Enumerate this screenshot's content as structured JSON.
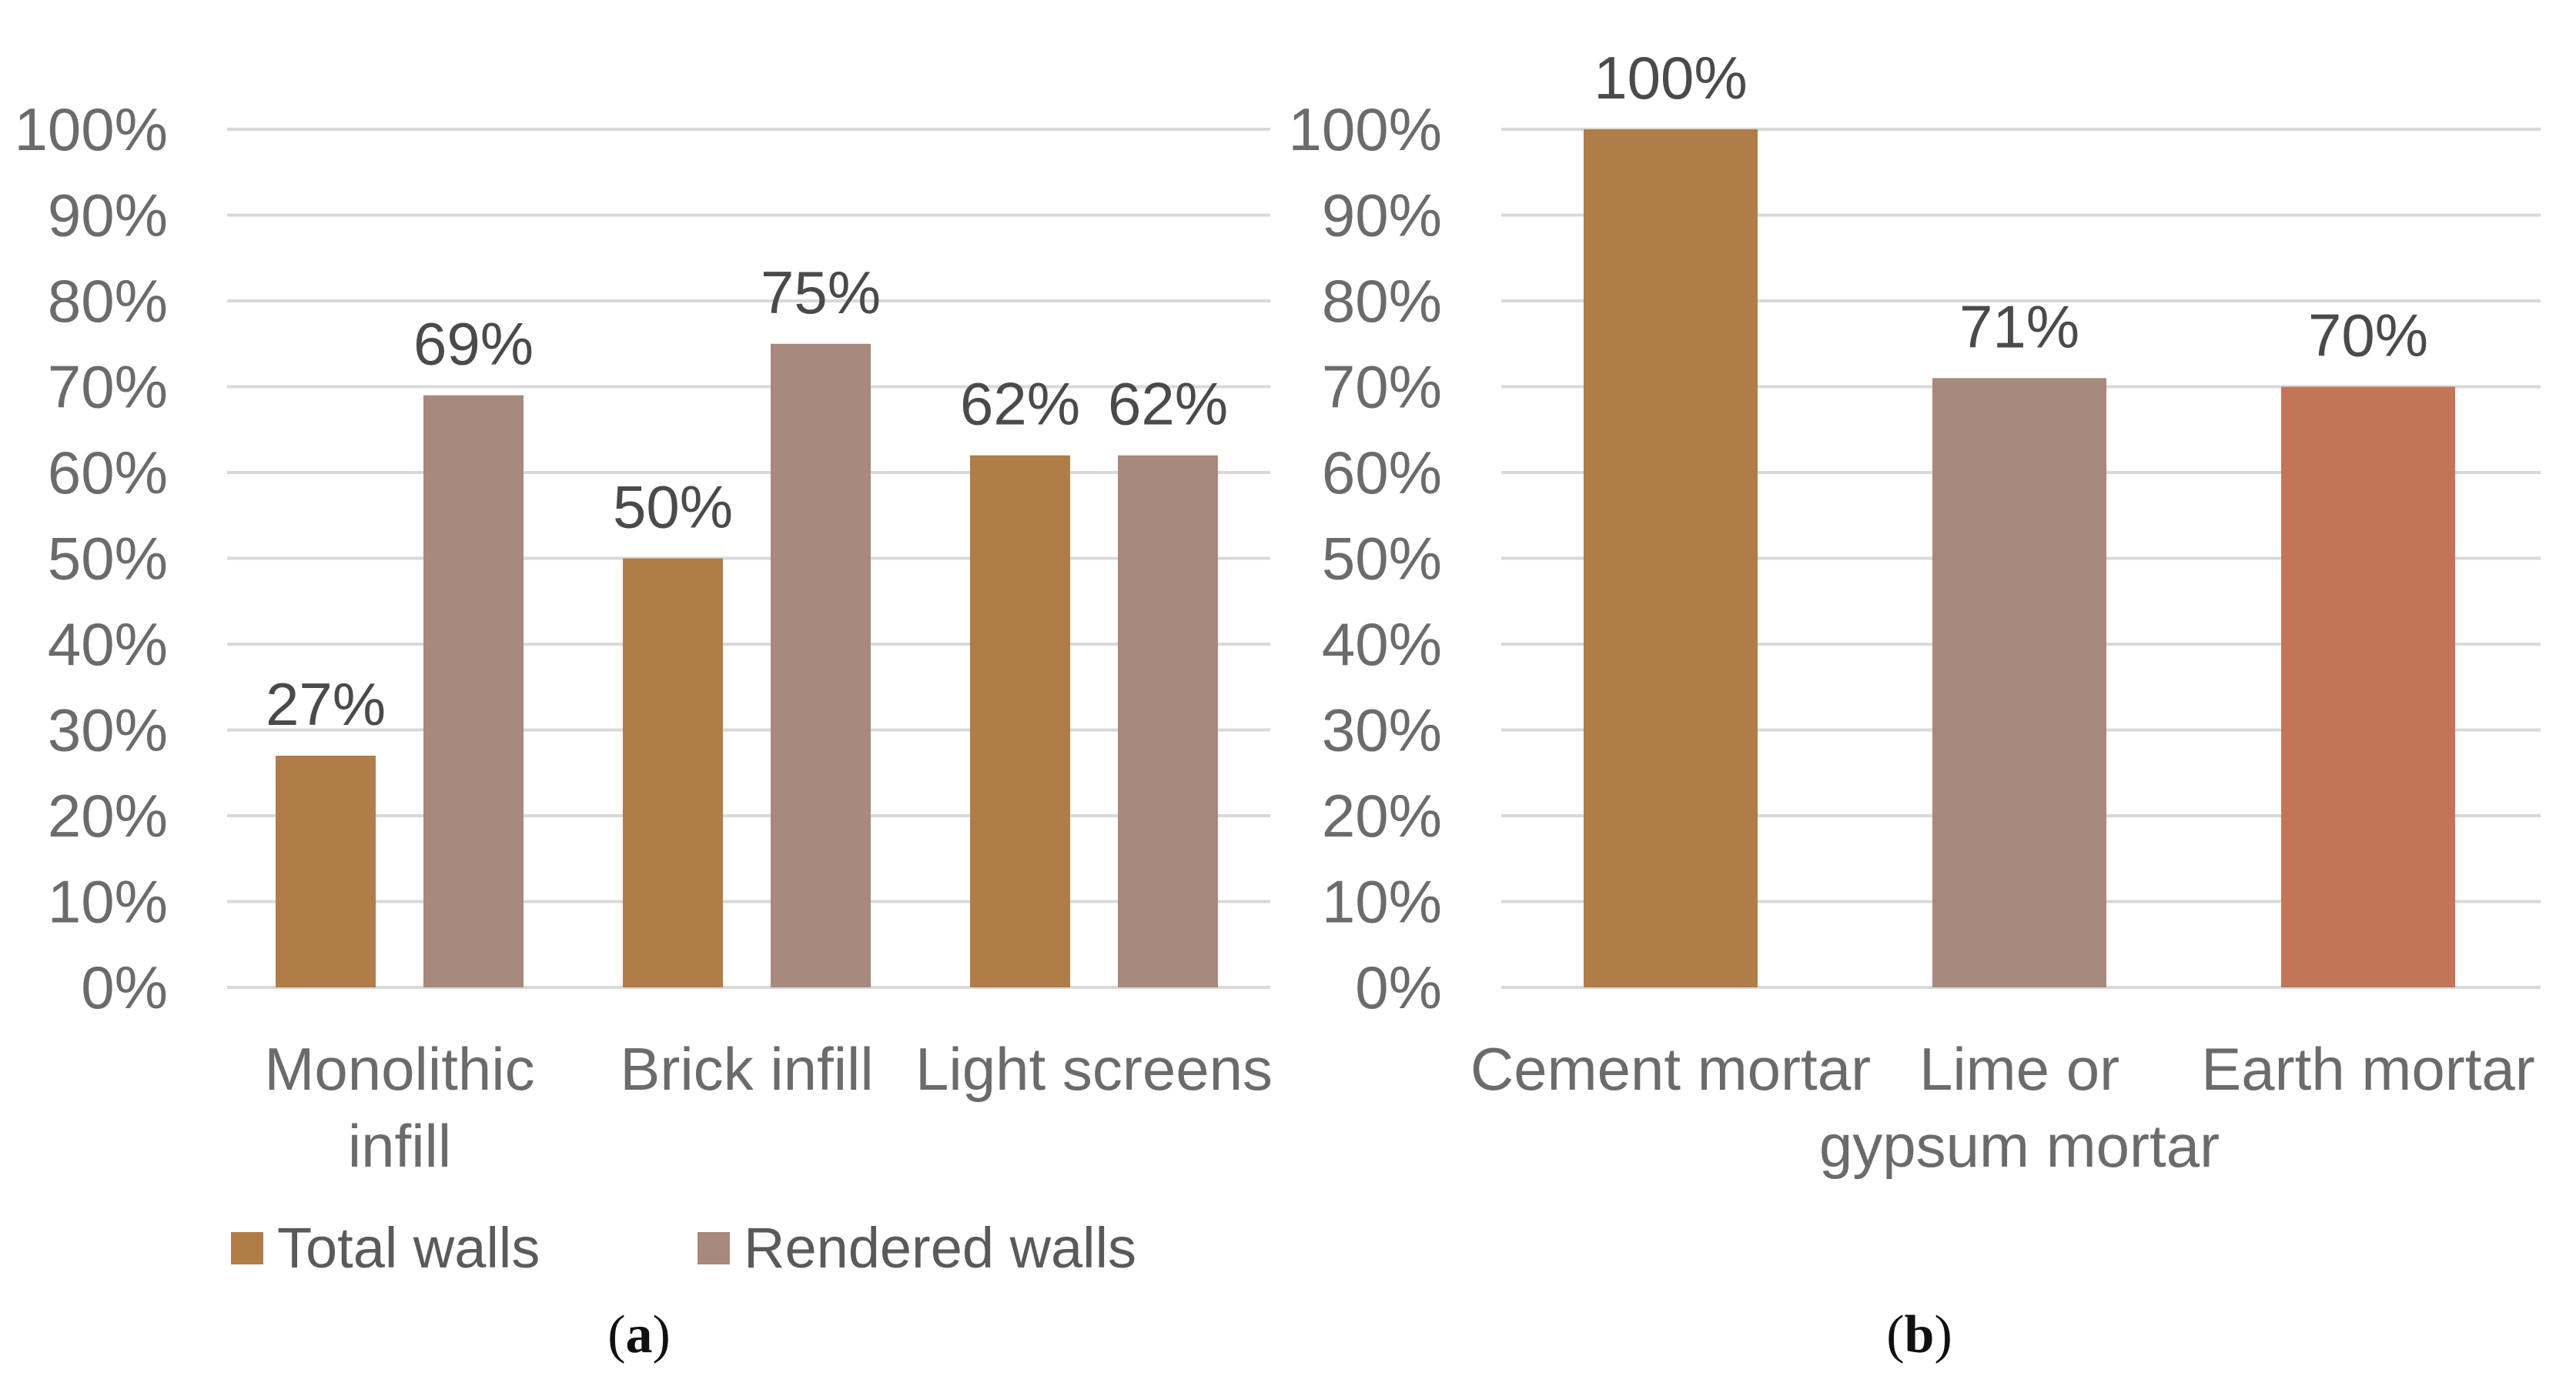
{
  "chart_data": [
    {
      "type": "bar",
      "panel": "a",
      "panel_letter": "a",
      "categories": [
        [
          "Monolithic",
          "infill"
        ],
        [
          "Brick infill"
        ],
        [
          "Light screens"
        ]
      ],
      "series": [
        {
          "name": "Total walls",
          "color": "#b07d48",
          "values": [
            27,
            50,
            62
          ]
        },
        {
          "name": "Rendered walls",
          "color": "#a8897d",
          "values": [
            69,
            75,
            62
          ]
        }
      ],
      "data_labels": [
        [
          "27%",
          "69%"
        ],
        [
          "50%",
          "75%"
        ],
        [
          "62%",
          "62%"
        ]
      ],
      "ylim": [
        0,
        100
      ],
      "yticks": [
        "0%",
        "10%",
        "20%",
        "30%",
        "40%",
        "50%",
        "60%",
        "70%",
        "80%",
        "90%",
        "100%"
      ],
      "grid": true,
      "legend": "bottom"
    },
    {
      "type": "bar",
      "panel": "b",
      "panel_letter": "b",
      "categories": [
        [
          "Cement mortar"
        ],
        [
          "Lime or",
          "gypsum mortar"
        ],
        [
          "Earth mortar"
        ]
      ],
      "values": [
        100,
        71,
        70
      ],
      "colors": [
        "#b07d48",
        "#a8897d",
        "#c27657"
      ],
      "data_labels": [
        "100%",
        "71%",
        "70%"
      ],
      "ylim": [
        0,
        100
      ],
      "yticks": [
        "0%",
        "10%",
        "20%",
        "30%",
        "40%",
        "50%",
        "60%",
        "70%",
        "80%",
        "90%",
        "100%"
      ],
      "grid": true
    }
  ]
}
